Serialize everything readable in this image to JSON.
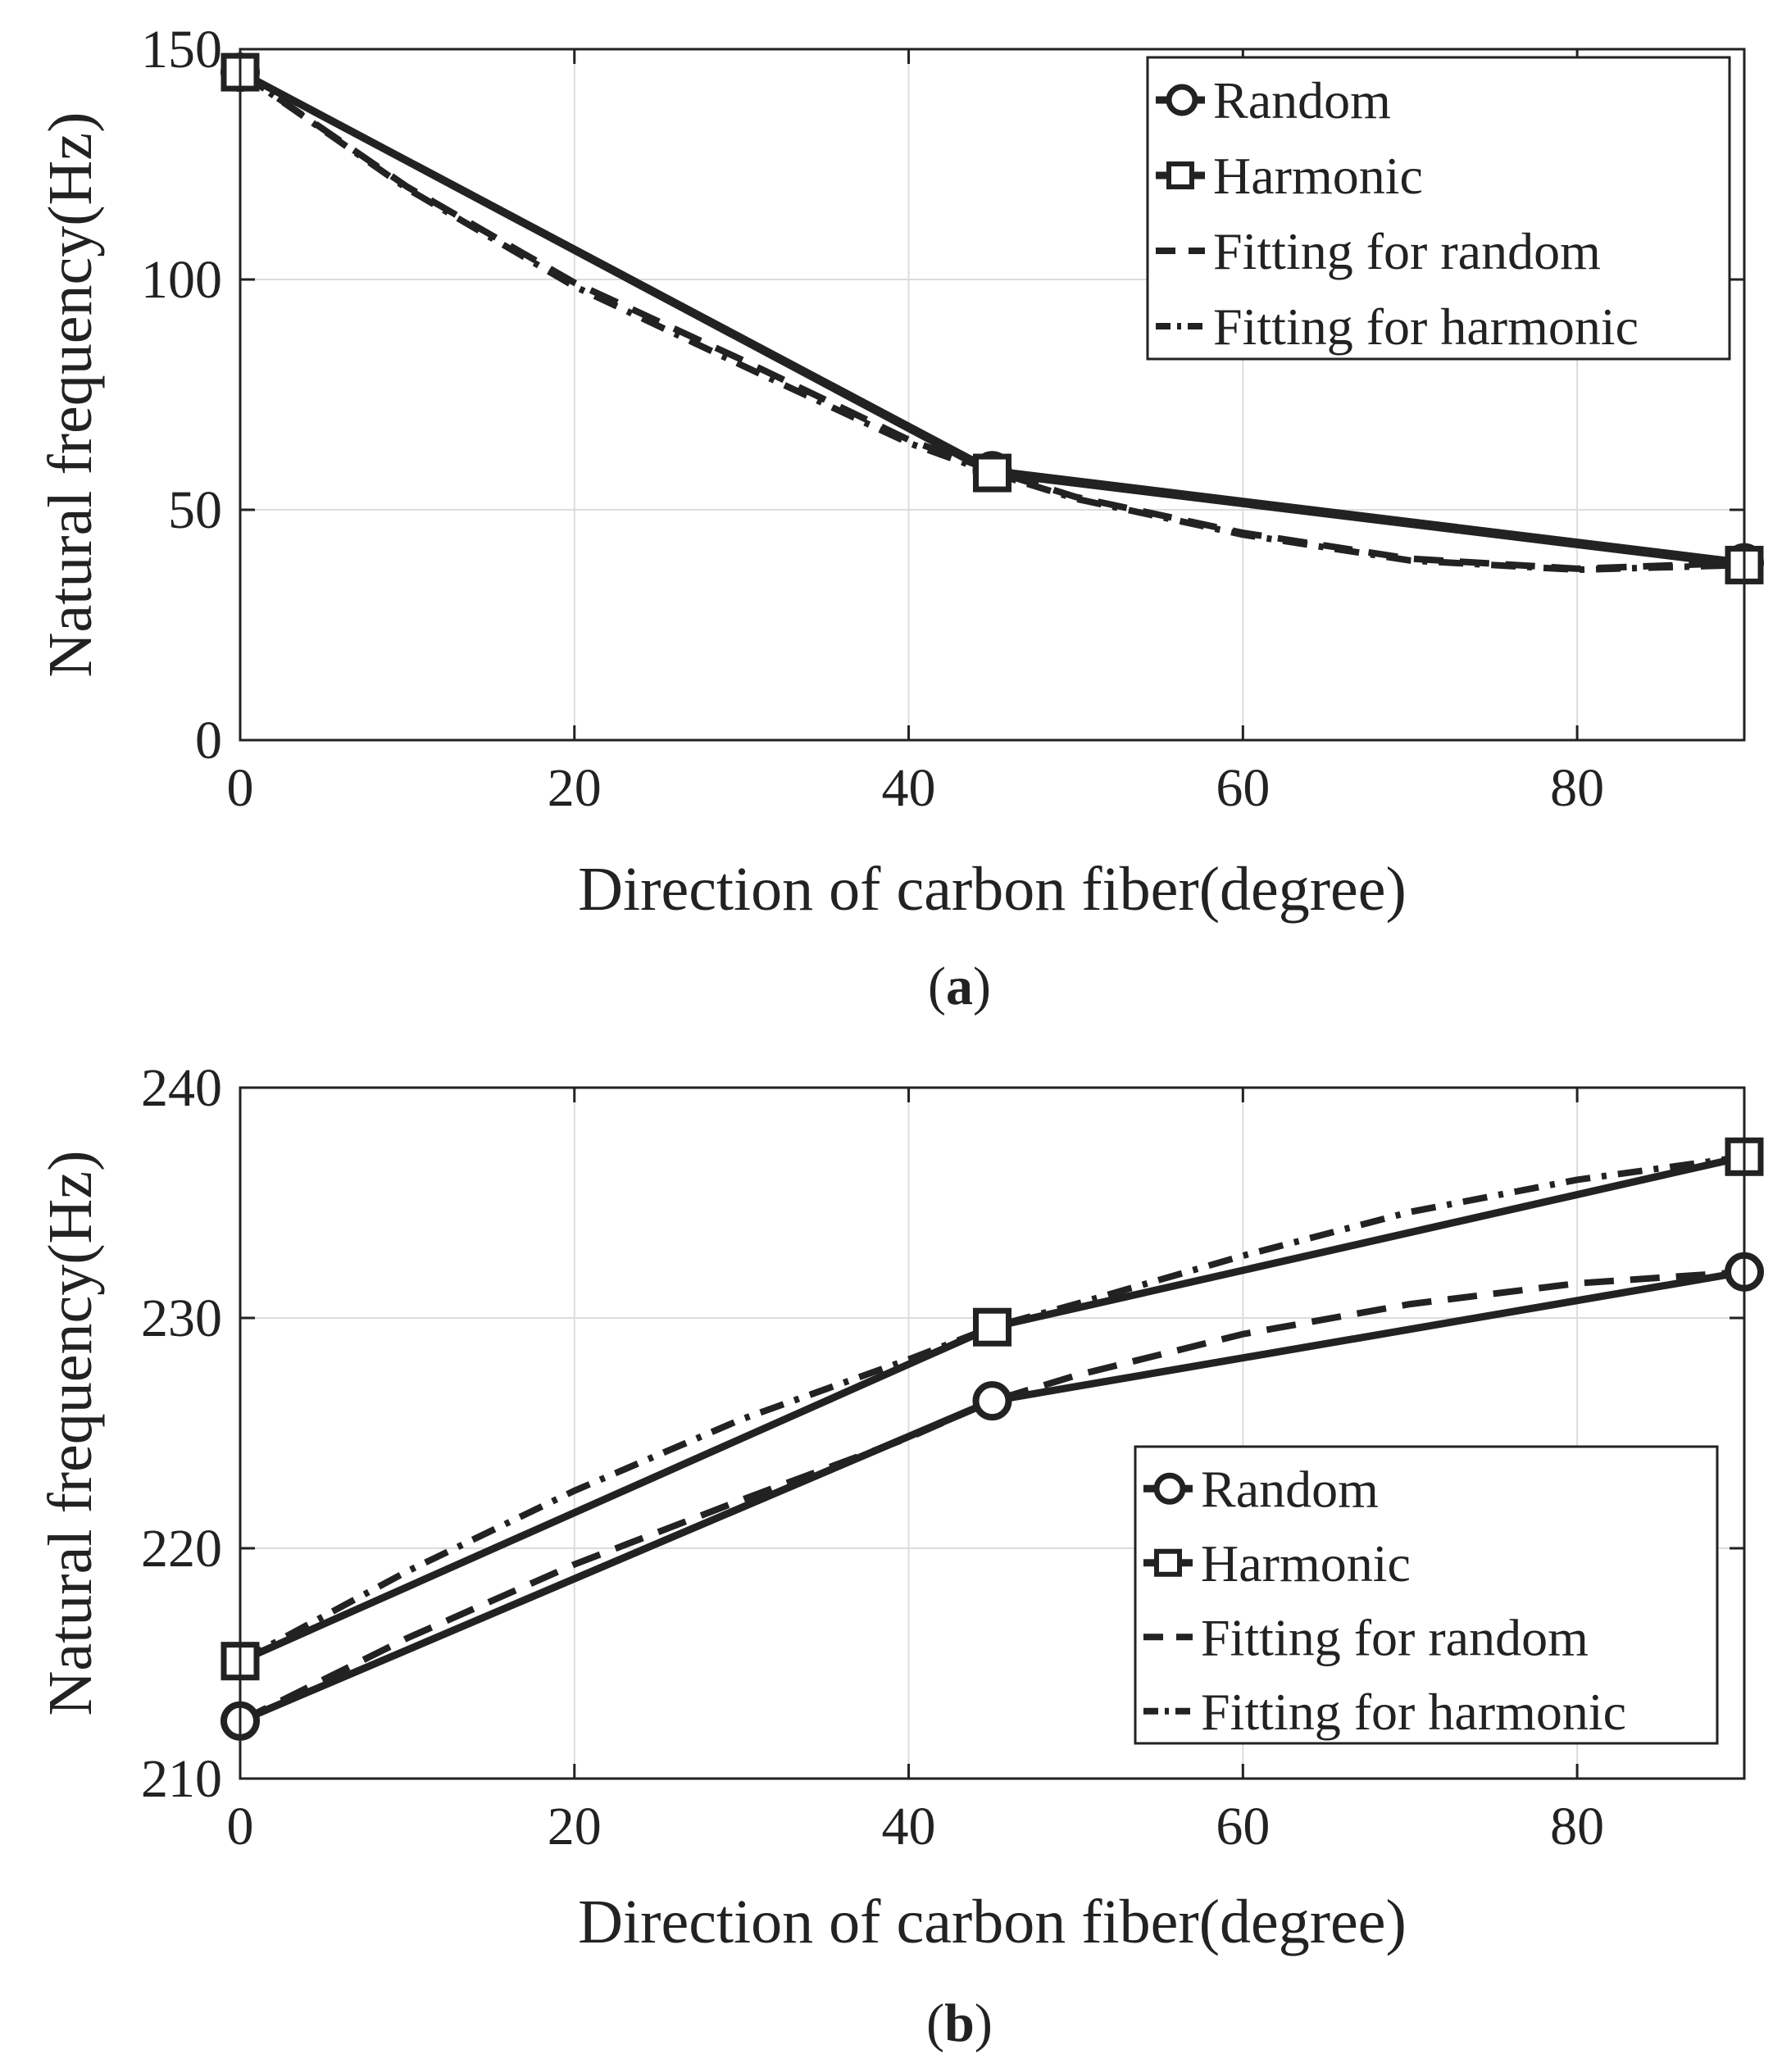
{
  "chart_data": [
    {
      "type": "line",
      "panel": "a",
      "caption": {
        "open": "(",
        "letter": "a",
        "close": ")"
      },
      "xlabel": "Direction of carbon fiber(degree)",
      "ylabel": "Natural frequency(Hz)",
      "xlim": [
        0,
        90
      ],
      "ylim": [
        0,
        150
      ],
      "xticks": [
        0,
        20,
        40,
        60,
        80
      ],
      "yticks": [
        0,
        50,
        100,
        150
      ],
      "grid": true,
      "legend_position": "top-right",
      "series": [
        {
          "name": "Random",
          "kind": "random",
          "x": [
            0,
            45,
            90
          ],
          "values": [
            145,
            58.5,
            38.5
          ]
        },
        {
          "name": "Harmonic",
          "kind": "harmonic",
          "x": [
            0,
            45,
            90
          ],
          "values": [
            145,
            58.0,
            38.0
          ]
        },
        {
          "name": "Fitting for random",
          "kind": "fit-random",
          "x": [
            0,
            10,
            20,
            30,
            40,
            45,
            50,
            60,
            70,
            80,
            90
          ],
          "values": [
            145,
            120.1,
            99.3,
            82.6,
            65.2,
            58.5,
            52.8,
            45.0,
            39.4,
            37.2,
            38.5
          ]
        },
        {
          "name": "Fitting for harmonic",
          "kind": "fit-harmonic",
          "x": [
            0,
            10,
            20,
            30,
            40,
            45,
            50,
            60,
            70,
            80,
            90
          ],
          "values": [
            145,
            119.7,
            98.5,
            81.4,
            64.5,
            58.0,
            52.4,
            44.6,
            39.0,
            37.0,
            38.0
          ]
        }
      ]
    },
    {
      "type": "line",
      "panel": "b",
      "caption": {
        "open": "(",
        "letter": "b",
        "close": ")"
      },
      "xlabel": "Direction of carbon fiber(degree)",
      "ylabel": "Natural frequency(Hz)",
      "xlim": [
        0,
        90
      ],
      "ylim": [
        210,
        240
      ],
      "xticks": [
        0,
        20,
        40,
        60,
        80
      ],
      "yticks": [
        210,
        220,
        230,
        240
      ],
      "grid": true,
      "legend_position": "bottom-right",
      "series": [
        {
          "name": "Random",
          "kind": "random",
          "x": [
            0,
            45,
            90
          ],
          "values": [
            212.5,
            226.4,
            232.0
          ]
        },
        {
          "name": "Harmonic",
          "kind": "harmonic",
          "x": [
            0,
            45,
            90
          ],
          "values": [
            215.1,
            229.6,
            237.0
          ]
        },
        {
          "name": "Fitting for random",
          "kind": "fit-random",
          "x": [
            0,
            10,
            20,
            30,
            40,
            45,
            50,
            60,
            70,
            80,
            90
          ],
          "values": [
            212.5,
            216.1,
            219.3,
            222.1,
            224.8,
            226.4,
            227.5,
            229.3,
            230.6,
            231.5,
            232.0
          ]
        },
        {
          "name": "Fitting for harmonic",
          "kind": "fit-harmonic",
          "x": [
            0,
            10,
            20,
            30,
            40,
            45,
            50,
            60,
            70,
            80,
            90
          ],
          "values": [
            215.1,
            219.0,
            222.5,
            225.6,
            228.2,
            229.6,
            230.6,
            232.7,
            234.6,
            236.0,
            237.0
          ]
        }
      ]
    }
  ]
}
